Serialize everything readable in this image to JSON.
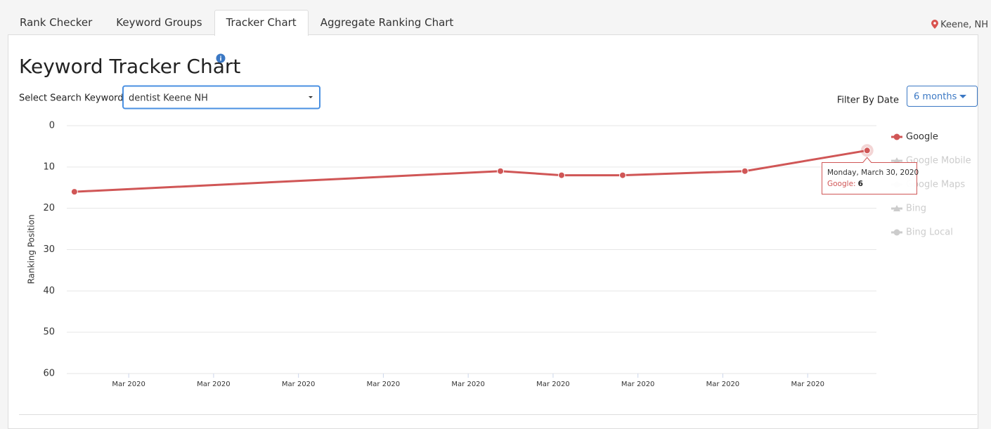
{
  "tabs": [
    "Rank Checker",
    "Keyword Groups",
    "Tracker Chart",
    "Aggregate Ranking Chart"
  ],
  "active_tab": 2,
  "location": "Keene, NH",
  "page_title": "Keyword Tracker Chart",
  "keyword_select": {
    "label": "Select Search Keyword:",
    "value": "dentist Keene NH"
  },
  "date_filter": {
    "label": "Filter By Date",
    "value": "6 months"
  },
  "chart_data": {
    "type": "line",
    "ylabel": "Ranking Position",
    "ylim": [
      0,
      60
    ],
    "y_reversed": true,
    "yticks": [
      0,
      10,
      20,
      30,
      40,
      50,
      60
    ],
    "xlim": [
      0.27,
      9.81
    ],
    "xticks": [
      {
        "value": 1,
        "label": "Mar 2020"
      },
      {
        "value": 2,
        "label": "Mar 2020"
      },
      {
        "value": 3,
        "label": "Mar 2020"
      },
      {
        "value": 4,
        "label": "Mar 2020"
      },
      {
        "value": 5,
        "label": "Mar 2020"
      },
      {
        "value": 6,
        "label": "Mar 2020"
      },
      {
        "value": 7,
        "label": "Mar 2020"
      },
      {
        "value": 8,
        "label": "Mar 2020"
      },
      {
        "value": 9,
        "label": "Mar 2020"
      }
    ],
    "x": [
      0.36,
      5.38,
      6.1,
      6.82,
      8.26,
      9.7
    ],
    "grid": true,
    "legend": "right",
    "series": [
      {
        "name": "Google",
        "color": "#d05656",
        "marker": "circle",
        "values": [
          16,
          11,
          12,
          12,
          11,
          6
        ]
      },
      {
        "name": "Google Mobile",
        "color": "#cccccc",
        "marker": "triangle",
        "hidden": true,
        "values": [
          null,
          null,
          null,
          null,
          null,
          null
        ]
      },
      {
        "name": "Google Maps",
        "color": "#cccccc",
        "marker": "circle",
        "hidden": true,
        "values": [
          null,
          null,
          null,
          null,
          null,
          null
        ]
      },
      {
        "name": "Bing",
        "color": "#cccccc",
        "marker": "triangle",
        "hidden": true,
        "values": [
          null,
          null,
          null,
          null,
          null,
          null
        ]
      },
      {
        "name": "Bing Local",
        "color": "#cccccc",
        "marker": "circle",
        "hidden": true,
        "values": [
          null,
          null,
          null,
          null,
          null,
          null
        ]
      }
    ],
    "tooltip": {
      "date": "Monday, March 30, 2020",
      "label": "Google:"
    }
  }
}
